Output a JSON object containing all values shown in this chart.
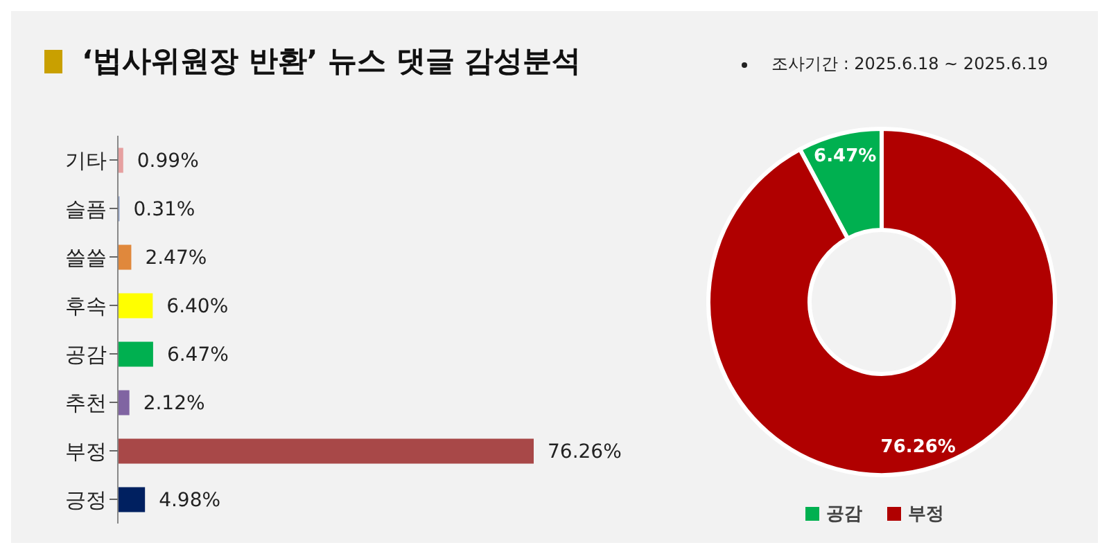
{
  "chart_data": [
    {
      "type": "bar",
      "orientation": "horizontal",
      "title": "‘법사위원장 반환’ 뉴스 댓글 감성분석",
      "annotations": [
        "조사기간 : 2025.6.18 ~ 2025.6.19"
      ],
      "categories": [
        "기타",
        "슬픔",
        "쓸쓸",
        "후속",
        "공감",
        "추천",
        "부정",
        "긍정"
      ],
      "values": [
        0.99,
        0.31,
        2.47,
        6.4,
        6.47,
        2.12,
        76.26,
        4.98
      ],
      "colors": [
        "#e6a0a0",
        "#8fa0c8",
        "#e0883c",
        "#ffff00",
        "#00b050",
        "#8064a2",
        "#a84848",
        "#002060"
      ],
      "value_labels": [
        "0.99%",
        "0.31%",
        "2.47%",
        "6.40%",
        "6.47%",
        "2.12%",
        "76.26%",
        "4.98%"
      ],
      "tick_labels": "y"
    },
    {
      "type": "donut",
      "categories": [
        "공감",
        "부정"
      ],
      "values": [
        6.47,
        76.26
      ],
      "colors": [
        "#00b050",
        "#b00000"
      ],
      "value_labels": [
        "6.47%",
        "76.26%"
      ],
      "legend": "bottom"
    }
  ]
}
